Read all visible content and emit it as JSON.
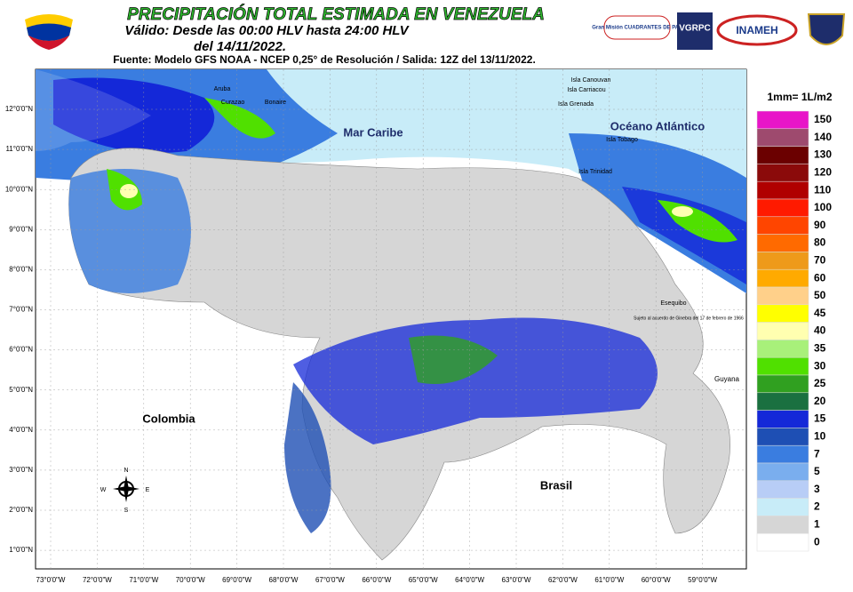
{
  "header": {
    "title": "PRECIPITACIÓN TOTAL ESTIMADA EN VENEZUELA",
    "valid": "Válido: Desde las 00:00 HLV hasta 24:00 HLV",
    "date": "del 14/11/2022.",
    "source": "Fuente: Modelo GFS NOAA - NCEP 0,25° de Resolución / Salida: 12Z del 13/11/2022."
  },
  "logos": [
    "Gran Misión CUADRANTES DE PAZ",
    "VGRPC",
    "INAMEH"
  ],
  "map": {
    "lat_labels": [
      "12°0'0\"N",
      "11°0'0\"N",
      "10°0'0\"N",
      "9°0'0\"N",
      "8°0'0\"N",
      "7°0'0\"N",
      "6°0'0\"N",
      "5°0'0\"N",
      "4°0'0\"N",
      "3°0'0\"N",
      "2°0'0\"N",
      "1°0'0\"N"
    ],
    "lon_labels": [
      "73°0'0\"W",
      "72°0'0\"W",
      "71°0'0\"W",
      "70°0'0\"W",
      "69°0'0\"W",
      "68°0'0\"W",
      "67°0'0\"W",
      "66°0'0\"W",
      "65°0'0\"W",
      "64°0'0\"W",
      "63°0'0\"W",
      "62°0'0\"W",
      "61°0'0\"W",
      "60°0'0\"W",
      "59°0'0\"W"
    ],
    "places": [
      "Mar Caribe",
      "Océano Atlántico",
      "Colombia",
      "Brasil",
      "Guyana",
      "Aruba",
      "Curazao",
      "Bonaire",
      "Isla Canouvan",
      "Isla Carriacou",
      "Isla Grenada",
      "Isla Tobago",
      "Isla Trinidad",
      "Esequibo",
      "Sujeto al acuerdo de Ginebra del 17 de febrero de 1966"
    ],
    "compass": [
      "N",
      "W",
      "E",
      "S"
    ]
  },
  "legend": {
    "unit": "1mm= 1L/m2",
    "classes": [
      {
        "value": 150,
        "color": "#e815c8"
      },
      {
        "value": 140,
        "color": "#9e4a6e"
      },
      {
        "value": 130,
        "color": "#6b0000"
      },
      {
        "value": 120,
        "color": "#8b0a0a"
      },
      {
        "value": 110,
        "color": "#b00000"
      },
      {
        "value": 100,
        "color": "#ff1a00"
      },
      {
        "value": 90,
        "color": "#ff4500"
      },
      {
        "value": 80,
        "color": "#ff6a00"
      },
      {
        "value": 70,
        "color": "#ee9a1a"
      },
      {
        "value": 60,
        "color": "#ffaa00"
      },
      {
        "value": 50,
        "color": "#ffd08a"
      },
      {
        "value": 45,
        "color": "#ffff00"
      },
      {
        "value": 40,
        "color": "#ffffb0"
      },
      {
        "value": 35,
        "color": "#a8f07a"
      },
      {
        "value": 30,
        "color": "#50e000"
      },
      {
        "value": 25,
        "color": "#30a020"
      },
      {
        "value": 20,
        "color": "#1a7040"
      },
      {
        "value": 15,
        "color": "#1428d8"
      },
      {
        "value": 10,
        "color": "#1e4fb4"
      },
      {
        "value": 7,
        "color": "#3a7de0"
      },
      {
        "value": 5,
        "color": "#7aaeee"
      },
      {
        "value": 3,
        "color": "#b8cdf6"
      },
      {
        "value": 2,
        "color": "#c8ecf8"
      },
      {
        "value": 1,
        "color": "#d6d6d6"
      },
      {
        "value": 0,
        "color": "#ffffff"
      }
    ]
  }
}
